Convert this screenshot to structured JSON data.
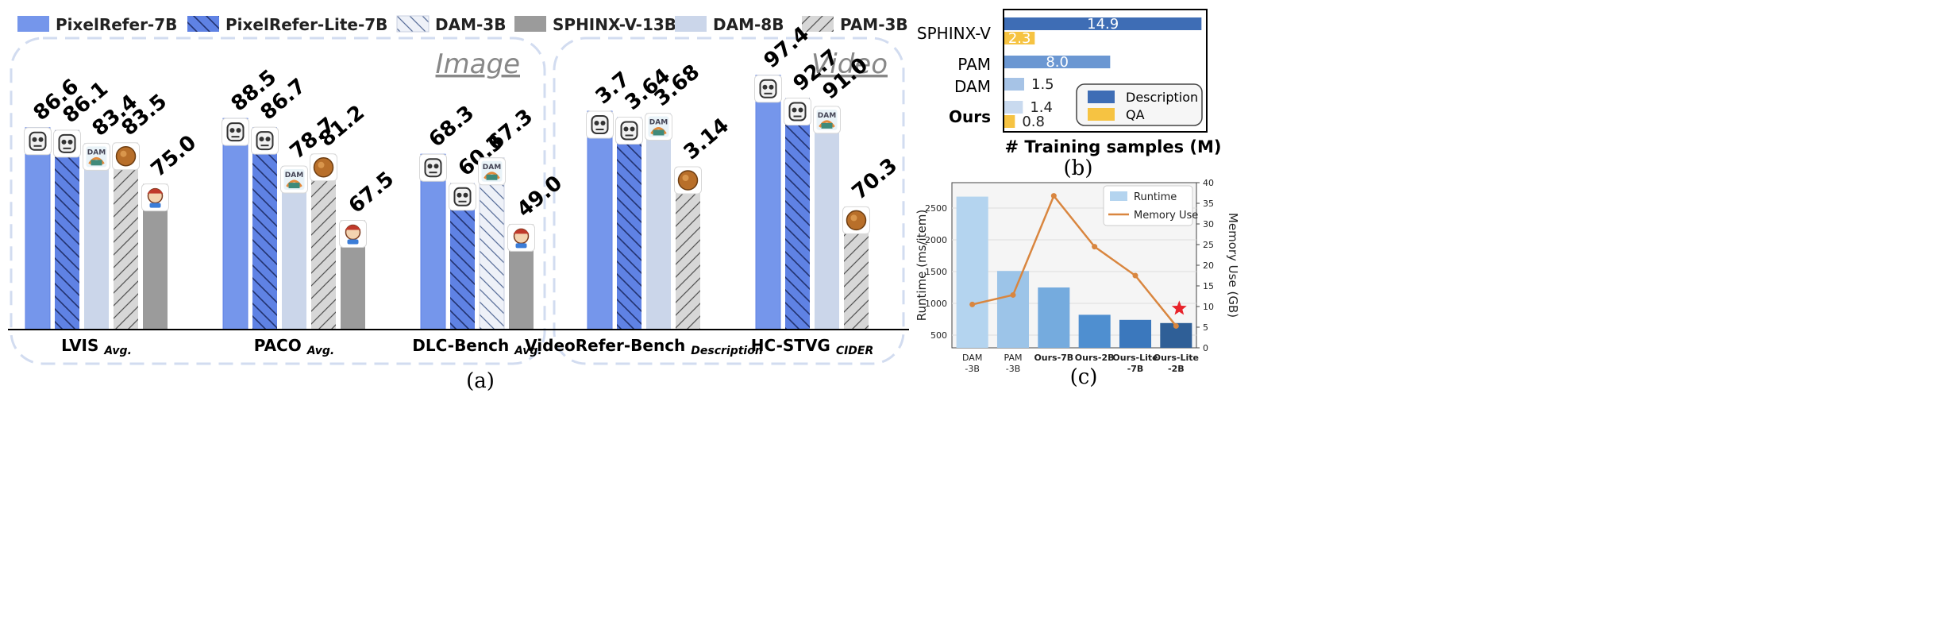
{
  "panel_a": {
    "caption": "(a)",
    "section_image": "Image",
    "section_video": "Video",
    "colors": {
      "PixelRefer-7B": "#7596eb",
      "PixelRefer-Lite-7B": "#5f82e4",
      "DAM-3B": "#eef1f8",
      "SPHINX-V-13B": "#9b9b9b",
      "DAM-8B": "#cbd6ea",
      "PAM-3B": "#d7d7d7"
    },
    "badges": {
      "PixelRefer-7B": "robot-icon",
      "PixelRefer-Lite-7B": "robot-icon",
      "DAM-3B": "dam-icon",
      "DAM-8B": "dam-icon",
      "PAM-3B": "bread-icon",
      "SPHINX-V-13B": "cartoon-icon"
    },
    "dam_badge_text": "DAM",
    "legend": [
      "PixelRefer-7B",
      "PixelRefer-Lite-7B",
      "DAM-3B",
      "SPHINX-V-13B",
      "DAM-8B",
      "PAM-3B"
    ],
    "groups": [
      {
        "label": "LVIS",
        "sub": "Avg.",
        "bars": [
          {
            "model": "PixelRefer-7B",
            "value": 86.6,
            "text": "86.6"
          },
          {
            "model": "PixelRefer-Lite-7B",
            "value": 86.1,
            "text": "86.1"
          },
          {
            "model": "DAM-8B",
            "value": 83.4,
            "text": "83.4"
          },
          {
            "model": "PAM-3B",
            "value": 83.5,
            "text": "83.5"
          },
          {
            "model": "SPHINX-V-13B",
            "value": 75.0,
            "text": "75.0"
          }
        ]
      },
      {
        "label": "PACO",
        "sub": "Avg.",
        "bars": [
          {
            "model": "PixelRefer-7B",
            "value": 88.5,
            "text": "88.5"
          },
          {
            "model": "PixelRefer-Lite-7B",
            "value": 86.7,
            "text": "86.7"
          },
          {
            "model": "DAM-8B",
            "value": 78.7,
            "text": "78.7"
          },
          {
            "model": "PAM-3B",
            "value": 81.2,
            "text": "81.2"
          },
          {
            "model": "SPHINX-V-13B",
            "value": 67.5,
            "text": "67.5"
          }
        ]
      },
      {
        "label": "DLC-Bench",
        "sub": "Avg.",
        "bars": [
          {
            "model": "PixelRefer-7B",
            "value": 68.3,
            "text": "68.3"
          },
          {
            "model": "PixelRefer-Lite-7B",
            "value": 60.3,
            "text": "60.3"
          },
          {
            "model": "DAM-3B",
            "value": 67.3,
            "text": "67.3"
          },
          {
            "model": "SPHINX-V-13B",
            "value": 49.0,
            "text": "49.0"
          }
        ]
      },
      {
        "label": "VideoRefer-Bench",
        "sub": "Description",
        "bars": [
          {
            "model": "PixelRefer-7B",
            "value": 3.7,
            "text": "3.7"
          },
          {
            "model": "PixelRefer-Lite-7B",
            "value": 3.64,
            "text": "3.64"
          },
          {
            "model": "DAM-8B",
            "value": 3.68,
            "text": "3.68"
          },
          {
            "model": "PAM-3B",
            "value": 3.14,
            "text": "3.14"
          }
        ]
      },
      {
        "label": "HC-STVG",
        "sub": "CIDER",
        "bars": [
          {
            "model": "PixelRefer-7B",
            "value": 97.4,
            "text": "97.4"
          },
          {
            "model": "PixelRefer-Lite-7B",
            "value": 92.7,
            "text": "92.7"
          },
          {
            "model": "DAM-8B",
            "value": 91.0,
            "text": "91.0"
          },
          {
            "model": "PAM-3B",
            "value": 70.3,
            "text": "70.3"
          }
        ]
      }
    ]
  },
  "panel_b": {
    "caption": "(b)",
    "xlabel": "# Training samples (M)",
    "xlim": [
      0,
      15
    ],
    "legend": [
      "Description",
      "QA"
    ],
    "colors": {
      "Description": "#3e6db5",
      "PAM": "#6b97d2",
      "DAM": "#a6c3e6",
      "Ours": "#c9daef",
      "QA": "#f6c342"
    },
    "rows": [
      {
        "label": "SPHINX-V",
        "bold": false,
        "bars": [
          {
            "series": "Description",
            "value": 14.9,
            "text": "14.9"
          },
          {
            "series": "QA",
            "value": 2.3,
            "text": "2.3"
          }
        ]
      },
      {
        "label": "PAM",
        "bold": false,
        "bars": [
          {
            "series": "Description",
            "value": 8.0,
            "text": "8.0"
          }
        ]
      },
      {
        "label": "DAM",
        "bold": false,
        "bars": [
          {
            "series": "Description",
            "value": 1.5,
            "text": "1.5"
          }
        ]
      },
      {
        "label": "Ours",
        "bold": true,
        "bars": [
          {
            "series": "Description",
            "value": 1.4,
            "text": "1.4"
          },
          {
            "series": "QA",
            "value": 0.8,
            "text": "0.8"
          }
        ]
      }
    ]
  },
  "panel_c": {
    "caption": "(c)",
    "ylabel_left": "Runtime (ms/item)",
    "ylabel_right": "Memory Use (GB)",
    "ylim_left": [
      300,
      2900
    ],
    "ylim_right": [
      0,
      40
    ],
    "yticks_left": [
      500,
      1000,
      1500,
      2000,
      2500
    ],
    "yticks_right": [
      0,
      5,
      10,
      15,
      20,
      25,
      30,
      35,
      40
    ],
    "legend_runtime": "Runtime",
    "legend_memory": "Memory Use",
    "memory_color": "#d9863f",
    "star_color": "#e8232b",
    "categories": [
      {
        "l1": "DAM",
        "l2": "-3B",
        "bold": false,
        "runtime": 2680,
        "memory": 10.5,
        "color": "#b4d4ef"
      },
      {
        "l1": "PAM",
        "l2": "-3B",
        "bold": false,
        "runtime": 1510,
        "memory": 12.8,
        "color": "#9cc4e8"
      },
      {
        "l1": "Ours-7B",
        "l2": "",
        "bold": true,
        "runtime": 1250,
        "memory": 36.8,
        "color": "#75abde"
      },
      {
        "l1": "Ours-2B",
        "l2": "",
        "bold": true,
        "runtime": 820,
        "memory": 24.5,
        "color": "#4f8fd0"
      },
      {
        "l1": "Ours-Lite",
        "l2": "-7B",
        "bold": true,
        "runtime": 740,
        "memory": 17.5,
        "color": "#3b78bd"
      },
      {
        "l1": "Ours-Lite",
        "l2": "-2B",
        "bold": true,
        "runtime": 690,
        "memory": 5.3,
        "color": "#2f5f97"
      }
    ]
  }
}
